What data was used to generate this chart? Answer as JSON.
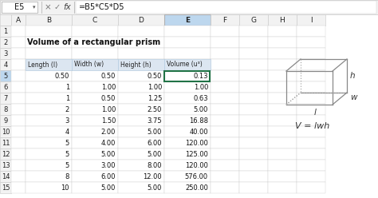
{
  "formula_bar_cell": "E5",
  "formula_bar_formula": "=B5*C5*D5",
  "title": "Volume of a rectangular prism",
  "table_headers": [
    "Length (l)",
    "Width (w)",
    "Height (h)",
    "Volume (u³)"
  ],
  "data": [
    [
      0.5,
      0.5,
      0.5,
      0.13
    ],
    [
      1,
      1.0,
      1.0,
      1.0
    ],
    [
      1,
      0.5,
      1.25,
      0.63
    ],
    [
      2,
      1.0,
      2.5,
      5.0
    ],
    [
      3,
      1.5,
      3.75,
      16.88
    ],
    [
      4,
      2.0,
      5.0,
      40.0
    ],
    [
      5,
      4.0,
      6.0,
      120.0
    ],
    [
      5,
      5.0,
      5.0,
      125.0
    ],
    [
      5,
      3.0,
      8.0,
      120.0
    ],
    [
      8,
      6.0,
      12.0,
      576.0
    ],
    [
      10,
      5.0,
      5.0,
      250.0
    ]
  ],
  "formula_bar_bg": "#f2f2f2",
  "sheet_bg": "#ffffff",
  "col_header_bg": "#f2f2f2",
  "col_header_sel_bg": "#bdd7ee",
  "row_header_sel_bg": "#bdd7ee",
  "table_header_bg": "#dce6f1",
  "sel_border_color": "#217346",
  "grid_color": "#d0d0d0",
  "prism_color": "#888888",
  "prism_dot_color": "#aaaaaa"
}
